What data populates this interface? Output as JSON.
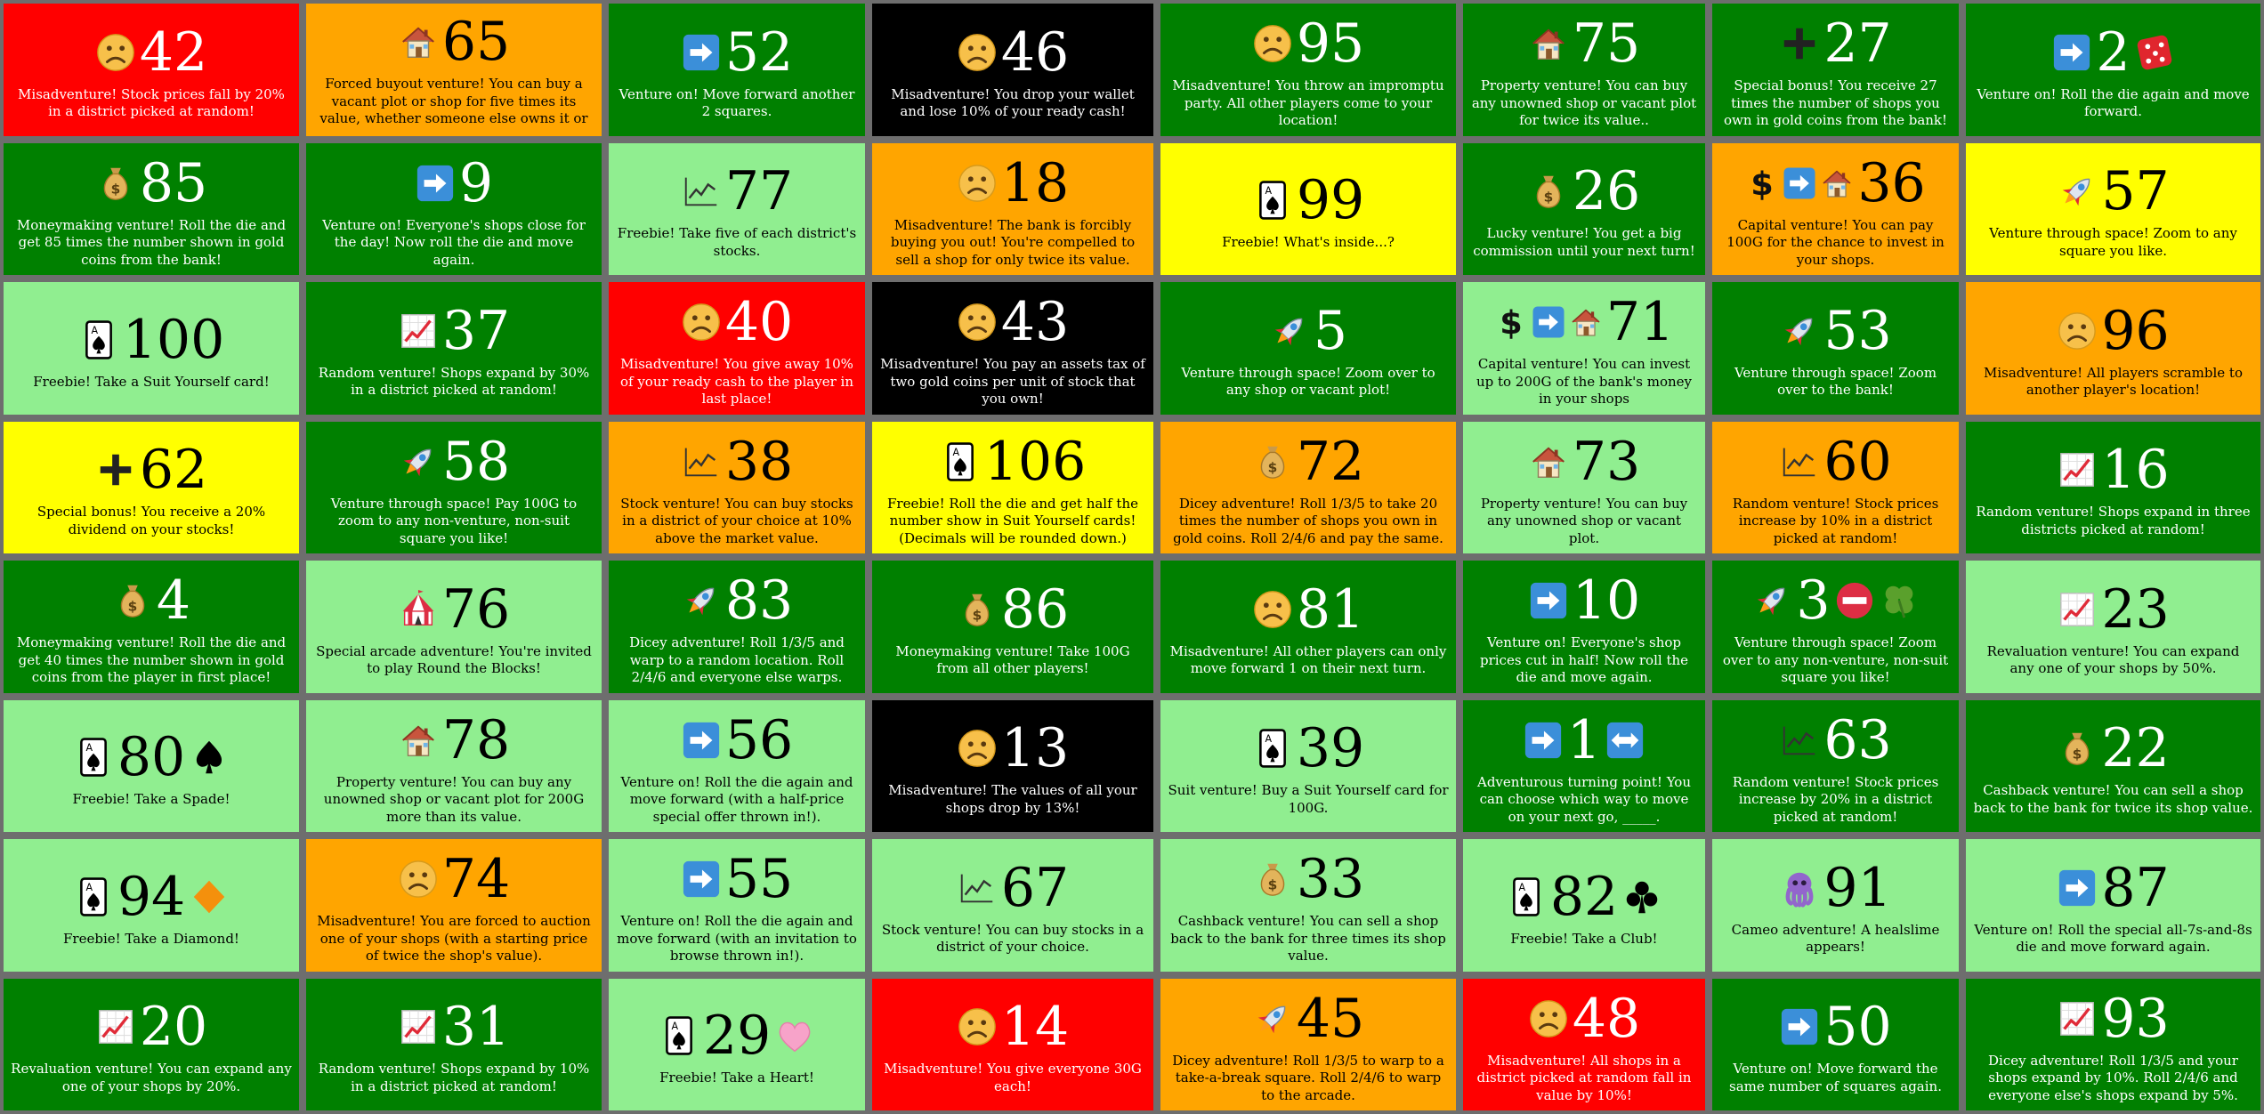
{
  "colors": {
    "red": "#ff0000",
    "orange": "#ffa500",
    "dark_green": "#008000",
    "black": "#000000",
    "light_green": "#90ee90",
    "yellow": "#ffff00",
    "grid_border": "#6e6e6e"
  },
  "cards": [
    {
      "number": "42",
      "color": "red",
      "icons": [
        "sad-face-icon"
      ],
      "text": "Misadventure! Stock prices fall by 20% in a district picked at random!"
    },
    {
      "number": "65",
      "color": "orange",
      "icons": [
        "house-icon"
      ],
      "text": "Forced buyout venture! You can buy a vacant plot or shop for five times its value, whether someone else owns it or not."
    },
    {
      "number": "52",
      "color": "dark_green",
      "icons": [
        "right-arrow-icon"
      ],
      "text": "Venture on! Move forward another 2 squares."
    },
    {
      "number": "46",
      "color": "black",
      "icons": [
        "sad-face-icon"
      ],
      "text": "Misadventure! You drop your wallet and lose 10% of your ready cash!"
    },
    {
      "number": "95",
      "color": "dark_green",
      "icons": [
        "sad-face-icon"
      ],
      "text": "Misadventure! You throw an impromptu party. All other players come to your location!"
    },
    {
      "number": "75",
      "color": "dark_green",
      "icons": [
        "house-icon"
      ],
      "text": "Property venture! You can buy any unowned shop or vacant plot for twice its value.."
    },
    {
      "number": "27",
      "color": "dark_green",
      "icons": [
        "plus-icon"
      ],
      "text": "Special bonus! You receive 27 times the number of shops you own in gold coins from the bank!"
    },
    {
      "number": "2",
      "color": "dark_green",
      "icons": [
        "right-arrow-icon"
      ],
      "after": [
        "dice-icon"
      ],
      "text": "Venture on! Roll the die again and move forward."
    },
    {
      "number": "85",
      "color": "dark_green",
      "icons": [
        "money-bag-icon"
      ],
      "text": "Moneymaking venture! Roll the die and get 85 times the number shown in gold coins from the bank!"
    },
    {
      "number": "9",
      "color": "dark_green",
      "icons": [
        "right-arrow-icon"
      ],
      "text": "Venture on! Everyone's shops close for the day! Now roll the die and move again."
    },
    {
      "number": "77",
      "color": "light_green",
      "icons": [
        "stock-chart-icon"
      ],
      "text": "Freebie! Take five of each district's stocks."
    },
    {
      "number": "18",
      "color": "orange",
      "icons": [
        "sad-face-icon"
      ],
      "text": "Misadventure! The bank is forcibly buying you out! You're compelled to sell a shop for only twice its value."
    },
    {
      "number": "99",
      "color": "yellow",
      "icons": [
        "spade-card-icon"
      ],
      "text": "Freebie! What's inside...?"
    },
    {
      "number": "26",
      "color": "dark_green",
      "icons": [
        "money-bag-icon"
      ],
      "text": "Lucky venture! You get a big commission until your next turn!"
    },
    {
      "number": "36",
      "color": "orange",
      "icons": [
        "dollar-icon",
        "right-arrow-icon",
        "house-icon"
      ],
      "text": "Capital venture! You can pay 100G for the chance to invest in your shops."
    },
    {
      "number": "57",
      "color": "yellow",
      "icons": [
        "rocket-icon"
      ],
      "text": "Venture through space! Zoom to any square you like."
    },
    {
      "number": "100",
      "color": "light_green",
      "icons": [
        "spade-card-icon"
      ],
      "text": "Freebie! Take a Suit Yourself card!"
    },
    {
      "number": "37",
      "color": "dark_green",
      "icons": [
        "trend-up-icon"
      ],
      "text": "Random venture! Shops expand by 30% in a district picked at random!"
    },
    {
      "number": "40",
      "color": "red",
      "icons": [
        "sad-face-icon"
      ],
      "text": "Misadventure! You give away 10% of your ready cash to the player in last place!"
    },
    {
      "number": "43",
      "color": "black",
      "icons": [
        "sad-face-icon"
      ],
      "text": "Misadventure! You pay an assets tax of two gold coins per unit of stock that you own!"
    },
    {
      "number": "5",
      "color": "dark_green",
      "icons": [
        "rocket-icon"
      ],
      "text": "Venture through space! Zoom over to any shop or vacant plot!"
    },
    {
      "number": "71",
      "color": "light_green",
      "icons": [
        "dollar-icon",
        "right-arrow-icon",
        "house-icon"
      ],
      "text": "Capital venture! You can invest up to 200G of the bank's money in your shops"
    },
    {
      "number": "53",
      "color": "dark_green",
      "icons": [
        "rocket-icon"
      ],
      "text": "Venture through space! Zoom over to the bank!"
    },
    {
      "number": "96",
      "color": "orange",
      "icons": [
        "sad-face-icon"
      ],
      "text": "Misadventure! All players scramble to another player's location!"
    },
    {
      "number": "62",
      "color": "yellow",
      "icons": [
        "plus-icon"
      ],
      "text": "Special bonus! You receive a 20% dividend on your stocks!"
    },
    {
      "number": "58",
      "color": "dark_green",
      "icons": [
        "rocket-icon"
      ],
      "text": "Venture through space! Pay 100G to zoom to any non-venture, non-suit square you like!"
    },
    {
      "number": "38",
      "color": "orange",
      "icons": [
        "stock-chart-icon"
      ],
      "text": "Stock venture! You can buy stocks in a district of your choice at 10% above the market value."
    },
    {
      "number": "106",
      "color": "yellow",
      "icons": [
        "spade-card-icon"
      ],
      "text": "Freebie! Roll the die and get half the number show in Suit Yourself cards! (Decimals will be rounded down.)"
    },
    {
      "number": "72",
      "color": "orange",
      "icons": [
        "money-bag-icon"
      ],
      "text": "Dicey adventure! Roll 1/3/5 to take 20 times the number of shops you own in gold coins. Roll 2/4/6 and pay the same."
    },
    {
      "number": "73",
      "color": "light_green",
      "icons": [
        "house-icon"
      ],
      "text": "Property venture! You can buy any unowned shop or vacant plot."
    },
    {
      "number": "60",
      "color": "orange",
      "icons": [
        "stock-chart-icon"
      ],
      "text": "Random venture! Stock prices increase by 10% in a district picked at random!"
    },
    {
      "number": "16",
      "color": "dark_green",
      "icons": [
        "trend-up-icon"
      ],
      "text": "Random venture! Shops expand in three districts picked at random!"
    },
    {
      "number": "4",
      "color": "dark_green",
      "icons": [
        "money-bag-icon"
      ],
      "text": "Moneymaking venture! Roll the die and get 40 times the number shown in gold coins from the player in first place!"
    },
    {
      "number": "76",
      "color": "light_green",
      "icons": [
        "circus-tent-icon"
      ],
      "text": "Special arcade adventure! You're invited to play Round the Blocks!"
    },
    {
      "number": "83",
      "color": "dark_green",
      "icons": [
        "rocket-icon"
      ],
      "text": "Dicey adventure! Roll 1/3/5 and warp to a random location. Roll 2/4/6 and everyone else warps."
    },
    {
      "number": "86",
      "color": "dark_green",
      "icons": [
        "money-bag-icon"
      ],
      "text": "Moneymaking venture! Take 100G from all other players!"
    },
    {
      "number": "81",
      "color": "dark_green",
      "icons": [
        "sad-face-icon"
      ],
      "text": "Misadventure! All other players can only move forward 1 on their next turn."
    },
    {
      "number": "10",
      "color": "dark_green",
      "icons": [
        "right-arrow-icon"
      ],
      "text": "Venture on! Everyone's shop prices cut in half! Now roll the die and move again."
    },
    {
      "number": "3",
      "color": "dark_green",
      "icons": [
        "rocket-icon"
      ],
      "after": [
        "no-entry-icon",
        "clover-icon"
      ],
      "text": "Venture through space! Zoom over to any non-venture, non-suit square you like!"
    },
    {
      "number": "23",
      "color": "light_green",
      "icons": [
        "trend-up-icon"
      ],
      "text": "Revaluation venture! You can expand any one of your shops by 50%."
    },
    {
      "number": "80",
      "color": "light_green",
      "icons": [
        "spade-card-icon"
      ],
      "after": [
        "spade-suit-icon"
      ],
      "text": "Freebie! Take a Spade!"
    },
    {
      "number": "78",
      "color": "light_green",
      "icons": [
        "house-icon"
      ],
      "text": "Property venture! You can buy any unowned shop or vacant plot for 200G more than its value."
    },
    {
      "number": "56",
      "color": "light_green",
      "icons": [
        "right-arrow-icon"
      ],
      "text": "Venture on! Roll the die again and move forward (with a half-price special offer thrown in!)."
    },
    {
      "number": "13",
      "color": "black",
      "icons": [
        "sad-face-icon"
      ],
      "text": "Misadventure! The values of all your shops drop by 13%!"
    },
    {
      "number": "39",
      "color": "light_green",
      "icons": [
        "spade-card-icon"
      ],
      "text": "Suit venture! Buy a Suit Yourself card for 100G."
    },
    {
      "number": "1",
      "color": "dark_green",
      "icons": [
        "right-arrow-icon"
      ],
      "after": [
        "left-right-arrow-icon"
      ],
      "text": "Adventurous turning point! You can choose which way to move on your next go, _____."
    },
    {
      "number": "63",
      "color": "dark_green",
      "icons": [
        "stock-chart-icon"
      ],
      "text": "Random venture! Stock prices increase by 20% in a district picked at random!"
    },
    {
      "number": "22",
      "color": "dark_green",
      "icons": [
        "money-bag-icon"
      ],
      "text": "Cashback venture! You can sell a shop back to the bank for twice its shop value."
    },
    {
      "number": "94",
      "color": "light_green",
      "icons": [
        "spade-card-icon"
      ],
      "after": [
        "diamond-suit-icon"
      ],
      "text": "Freebie! Take a Diamond!"
    },
    {
      "number": "74",
      "color": "orange",
      "icons": [
        "sad-face-icon"
      ],
      "text": "Misadventure! You are forced to auction one of your shops (with a starting price of twice the shop's value)."
    },
    {
      "number": "55",
      "color": "light_green",
      "icons": [
        "right-arrow-icon"
      ],
      "text": "Venture on! Roll the die again and move forward (with an invitation to browse thrown in!)."
    },
    {
      "number": "67",
      "color": "light_green",
      "icons": [
        "stock-chart-icon"
      ],
      "text": "Stock venture! You can buy stocks in a district of your choice."
    },
    {
      "number": "33",
      "color": "light_green",
      "icons": [
        "money-bag-icon"
      ],
      "text": "Cashback venture! You can sell a shop back to the bank for three times its shop value."
    },
    {
      "number": "82",
      "color": "light_green",
      "icons": [
        "spade-card-icon"
      ],
      "after": [
        "club-suit-icon"
      ],
      "text": "Freebie! Take a Club!"
    },
    {
      "number": "91",
      "color": "light_green",
      "icons": [
        "octopus-icon"
      ],
      "text": "Cameo adventure! A healslime appears!"
    },
    {
      "number": "87",
      "color": "light_green",
      "icons": [
        "right-arrow-icon"
      ],
      "text": "Venture on! Roll the special all-7s-and-8s die and move forward again."
    },
    {
      "number": "20",
      "color": "dark_green",
      "icons": [
        "trend-up-icon"
      ],
      "text": "Revaluation venture! You can expand any one of your shops by 20%."
    },
    {
      "number": "31",
      "color": "dark_green",
      "icons": [
        "trend-up-icon"
      ],
      "text": "Random venture! Shops expand by 10% in a district picked at random!"
    },
    {
      "number": "29",
      "color": "light_green",
      "icons": [
        "spade-card-icon"
      ],
      "after": [
        "heart-suit-icon"
      ],
      "text": "Freebie! Take a Heart!"
    },
    {
      "number": "14",
      "color": "red",
      "icons": [
        "sad-face-icon"
      ],
      "text": "Misadventure! You give everyone 30G each!"
    },
    {
      "number": "45",
      "color": "orange",
      "icons": [
        "rocket-icon"
      ],
      "text": "Dicey adventure! Roll 1/3/5 to warp to a take-a-break square. Roll 2/4/6 to warp to the arcade."
    },
    {
      "number": "48",
      "color": "red",
      "icons": [
        "sad-face-icon"
      ],
      "text": "Misadventure! All shops in a district picked at random fall in value by 10%!"
    },
    {
      "number": "50",
      "color": "dark_green",
      "icons": [
        "right-arrow-icon"
      ],
      "text": "Venture on! Move forward the same number of squares again."
    },
    {
      "number": "93",
      "color": "dark_green",
      "icons": [
        "trend-up-icon"
      ],
      "text": "Dicey adventure! Roll 1/3/5 and your shops expand by 10%. Roll 2/4/6 and everyone else's shops expand by 5%."
    }
  ]
}
